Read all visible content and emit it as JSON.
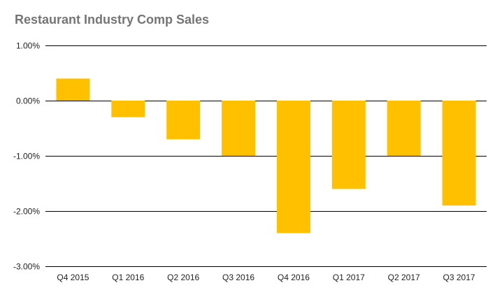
{
  "chart_data": {
    "type": "bar",
    "title": "Restaurant Industry Comp Sales",
    "xlabel": "",
    "ylabel": "",
    "categories": [
      "Q4 2015",
      "Q1 2016",
      "Q2 2016",
      "Q3 2016",
      "Q4 2016",
      "Q1 2017",
      "Q2 2017",
      "Q3 2017"
    ],
    "values": [
      0.4,
      -0.3,
      -0.7,
      -1.0,
      -2.4,
      -1.6,
      -1.0,
      -1.9
    ],
    "value_unit": "%",
    "ylim": [
      -3.0,
      1.0
    ],
    "yticks": [
      1.0,
      0.0,
      -1.0,
      -2.0,
      -3.0
    ],
    "ytick_labels": [
      "1.00%",
      "0.00%",
      "-1.00%",
      "-2.00%",
      "-3.00%"
    ],
    "grid": true,
    "legend": "none",
    "colors": {
      "bar": "#FFC000",
      "title": "#757575",
      "gridline": "#000000",
      "label": "#222222"
    }
  }
}
